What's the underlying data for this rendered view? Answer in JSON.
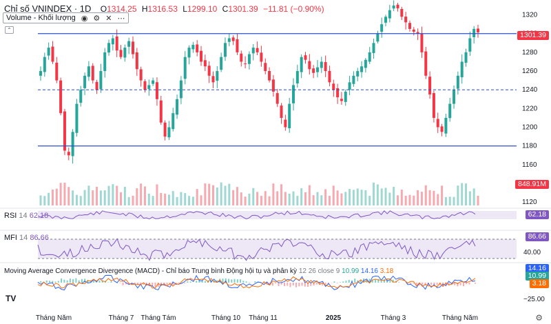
{
  "header": {
    "title": "Chỉ số VNINDEX · 1D",
    "o_label": "O",
    "o": "1314.25",
    "h_label": "H",
    "h": "1316.53",
    "l_label": "L",
    "l": "1299.10",
    "c_label": "C",
    "c": "1301.39",
    "change": "−11.81 (−0.90%)"
  },
  "volume_legend": {
    "label": "Volume - Khối lượng",
    "icons": [
      "eye-icon",
      "gear-icon",
      "close-icon",
      "more-icon"
    ]
  },
  "price_badge": "1301.39",
  "volume_badge": "848.91M",
  "rsi": {
    "label": "RSI",
    "period": "14",
    "value": "62.18",
    "badge": "62.18"
  },
  "mfi": {
    "label": "MFI",
    "period": "14",
    "value": "86.66",
    "badge": "86.66",
    "axis_label": "40.00"
  },
  "macd": {
    "label": "Moving Average Convergence Divergence (MACD) - Chỉ báo Trung bình Động hội tụ và phân kỳ",
    "params": "12 26 close 9",
    "hist": "10.99",
    "macd_value": "14.16",
    "signal_value": "3.18",
    "badge_macd": "14.16",
    "badge_hist": "10.99",
    "badge_signal": "3.18",
    "axis_label": "−25.00"
  },
  "colors": {
    "up": "#26a69a",
    "down": "#f23645",
    "hline": "#2a4fcc",
    "indicator": "#7e57c2",
    "macd_line": "#2962ff",
    "signal_line": "#ff6d00"
  },
  "chart_data": {
    "type": "candlestick",
    "title": "Chỉ số VNINDEX · 1D",
    "y_ticks": [
      1120,
      1140,
      1160,
      1180,
      1200,
      1220,
      1240,
      1260,
      1280,
      1300,
      1320
    ],
    "ylim": [
      1115,
      1330
    ],
    "x_ticks": [
      "Tháng Năm",
      "Tháng 7",
      "Tháng Tám",
      "Tháng 10",
      "Tháng 11",
      "2025",
      "Tháng 3",
      "Tháng Năm"
    ],
    "horizontal_lines": [
      {
        "value": 1300,
        "style": "solid"
      },
      {
        "value": 1240,
        "style": "dashed"
      },
      {
        "value": 1180,
        "style": "solid"
      }
    ],
    "close_path": [
      1260,
      1275,
      1285,
      1270,
      1250,
      1215,
      1175,
      1170,
      1195,
      1225,
      1240,
      1255,
      1265,
      1250,
      1240,
      1260,
      1280,
      1290,
      1295,
      1282,
      1275,
      1285,
      1292,
      1278,
      1262,
      1250,
      1240,
      1245,
      1250,
      1230,
      1205,
      1190,
      1200,
      1215,
      1230,
      1250,
      1275,
      1285,
      1288,
      1280,
      1270,
      1265,
      1255,
      1248,
      1260,
      1275,
      1290,
      1295,
      1292,
      1280,
      1270,
      1268,
      1278,
      1285,
      1280,
      1270,
      1260,
      1250,
      1238,
      1225,
      1210,
      1200,
      1225,
      1245,
      1260,
      1275,
      1272,
      1262,
      1258,
      1264,
      1270,
      1260,
      1248,
      1240,
      1232,
      1228,
      1238,
      1248,
      1255,
      1260,
      1265,
      1272,
      1280,
      1290,
      1300,
      1310,
      1318,
      1325,
      1330,
      1327,
      1318,
      1312,
      1305,
      1302,
      1300,
      1280,
      1255,
      1235,
      1210,
      1200,
      1195,
      1210,
      1225,
      1240,
      1255,
      1270,
      1280,
      1295,
      1305,
      1301.39
    ],
    "volume_last": "848.91M",
    "rsi_last": 62.18,
    "mfi_last": 86.66,
    "macd_last": 14.16,
    "signal_last": 3.18,
    "hist_last": 10.99
  }
}
